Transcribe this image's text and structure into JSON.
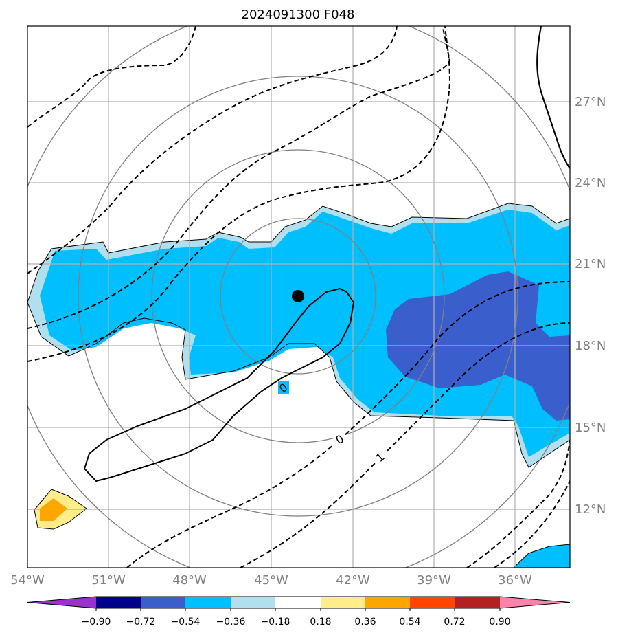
{
  "title": "2024091300 F048",
  "map": {
    "lon_range": [
      -54,
      -33.8
    ],
    "lat_range": [
      9.3,
      29.3
    ],
    "lat_labels": [
      "27°N",
      "24°N",
      "21°N",
      "18°N",
      "15°N",
      "12°N"
    ],
    "lon_labels": [
      "54°W",
      "51°W",
      "48°W",
      "45°W",
      "42°W",
      "39°W",
      "36°W"
    ],
    "center_marker": "storm-center-dot",
    "contour_labels": [
      "0",
      "0",
      "1"
    ]
  },
  "colorbar": {
    "tick_labels": [
      "−0.90",
      "−0.72",
      "−0.54",
      "−0.36",
      "−0.18",
      "0.18",
      "0.36",
      "0.54",
      "0.72",
      "0.90"
    ],
    "colors": [
      "#9a32cd",
      "#00008b",
      "#3a5fcd",
      "#00bfff",
      "#b2dfee",
      "#ffffff",
      "#ffec8b",
      "#ffa500",
      "#ff4500",
      "#b22222",
      "#ff82ab"
    ]
  }
}
